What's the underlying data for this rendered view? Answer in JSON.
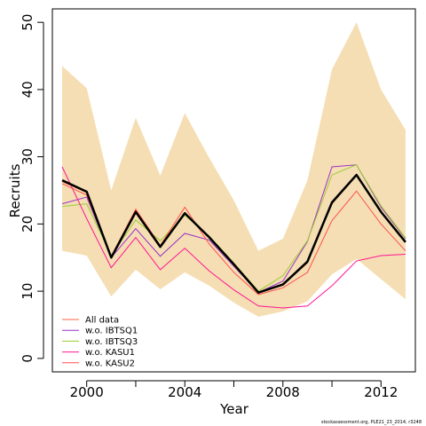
{
  "chart_data": {
    "type": "line",
    "title": "",
    "xlabel": "Year",
    "ylabel": "Recruits",
    "xlim": [
      1998.6,
      2013.4
    ],
    "ylim": [
      -2,
      52
    ],
    "x_ticks": [
      2000,
      2004,
      2008,
      2012
    ],
    "x_minor_ticks": [
      2002,
      2006,
      2010
    ],
    "y_ticks": [
      0,
      10,
      20,
      30,
      40,
      50
    ],
    "x": [
      1999,
      2000,
      2001,
      2002,
      2003,
      2004,
      2005,
      2006,
      2007,
      2008,
      2009,
      2010,
      2011,
      2012,
      2013
    ],
    "band": {
      "color": "#f5deb3",
      "upper": [
        43.5,
        40.2,
        25.0,
        35.8,
        27.2,
        36.5,
        29.8,
        23.5,
        16.0,
        17.8,
        26.5,
        43.0,
        50.0,
        40.0,
        34.0
      ],
      "lower": [
        16.0,
        15.3,
        9.2,
        13.2,
        10.3,
        12.8,
        10.8,
        8.3,
        6.2,
        7.0,
        8.5,
        12.5,
        14.8,
        11.8,
        8.8
      ]
    },
    "base": {
      "color": "#000000",
      "values": [
        26.5,
        24.8,
        15.0,
        21.8,
        16.6,
        21.6,
        18.0,
        14.0,
        9.8,
        11.0,
        14.4,
        23.2,
        27.3,
        21.8,
        17.3
      ]
    },
    "series": [
      {
        "name": "All data",
        "color": "#ff6040",
        "values": [
          26.3,
          24.7,
          15.1,
          22.0,
          16.8,
          21.5,
          18.0,
          14.0,
          9.7,
          10.9,
          14.2,
          23.0,
          27.2,
          21.8,
          17.3
        ]
      },
      {
        "name": "w.o. IBTSQ1",
        "color": "#9b30c8",
        "values": [
          23.0,
          24.0,
          15.0,
          19.3,
          15.2,
          18.6,
          17.6,
          13.7,
          9.8,
          11.5,
          17.4,
          28.5,
          28.8,
          22.5,
          17.8
        ]
      },
      {
        "name": "w.o. IBTSQ3",
        "color": "#9acd32",
        "values": [
          22.6,
          23.0,
          15.3,
          20.6,
          17.5,
          21.3,
          18.2,
          14.2,
          10.0,
          12.3,
          17.5,
          27.3,
          28.8,
          22.7,
          17.9
        ]
      },
      {
        "name": "w.o. KASU1",
        "color": "#ff1493",
        "values": [
          28.5,
          20.8,
          13.5,
          18.0,
          13.2,
          16.4,
          13.0,
          10.2,
          7.8,
          7.5,
          7.8,
          10.8,
          14.5,
          15.3,
          15.5
        ]
      },
      {
        "name": "w.o. KASU2",
        "color": "#ff5050",
        "values": [
          26.0,
          24.3,
          15.2,
          22.2,
          16.8,
          22.5,
          17.0,
          12.8,
          9.5,
          10.5,
          12.8,
          20.5,
          24.9,
          20.0,
          16.0
        ]
      }
    ],
    "legend": {
      "placement": "bottom-left"
    },
    "grid": false,
    "footer_note": "stockassessment.org, PLE21_23_2014, r3248"
  }
}
